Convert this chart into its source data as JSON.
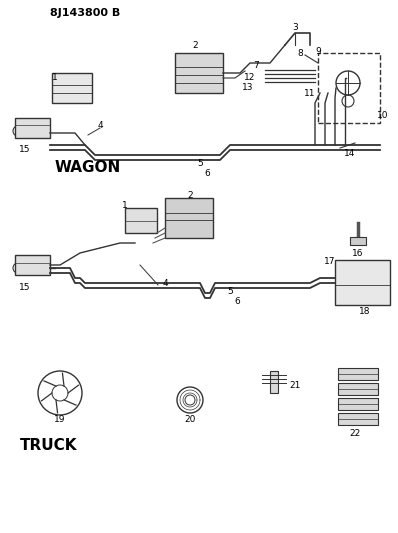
{
  "title": "8J143800 B",
  "background_color": "#ffffff",
  "line_color": "#333333",
  "text_color": "#000000",
  "wagon_label": "WAGON",
  "truck_label": "TRUCK",
  "figsize": [
    3.98,
    5.33
  ],
  "dpi": 100
}
